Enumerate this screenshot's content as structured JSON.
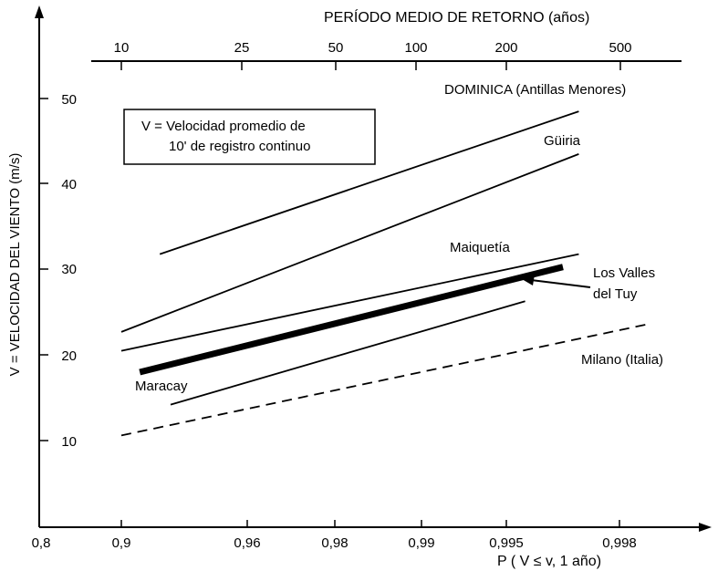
{
  "chart_data": {
    "type": "line",
    "top_axis": {
      "title": "PERÍODO MEDIO DE RETORNO  (años)",
      "ticks": [
        "10",
        "25",
        "50",
        "100",
        "200",
        "500"
      ]
    },
    "x_axis": {
      "label": "P  (  V ≤  v,  1  año)",
      "ticks": [
        "0,8",
        "0,9",
        "0,96",
        "0,98",
        "0,99",
        "0,995",
        "0,998"
      ]
    },
    "y_axis": {
      "label": "V  =  VELOCIDAD DEL VIENTO  (m/s)",
      "ticks": [
        "10",
        "20",
        "30",
        "40",
        "50"
      ],
      "ylim": [
        0,
        55
      ]
    },
    "region_label": "DOMINICA  (Antillas Menores)",
    "legend_box": {
      "line1": "V  =  Velocidad promedio de",
      "line2": "10' de registro continuo"
    },
    "series": [
      {
        "name": "Güiria",
        "x": [
          0.9,
          0.997
        ],
        "y": [
          22.7,
          43.5
        ],
        "style": "solid"
      },
      {
        "name": "",
        "x": [
          0.92,
          0.997
        ],
        "y": [
          31.8,
          48.5
        ],
        "style": "solid"
      },
      {
        "name": "Maiquetía",
        "x": [
          0.9,
          0.997
        ],
        "y": [
          20.5,
          31.8
        ],
        "style": "solid"
      },
      {
        "name": "Maracay / Los Valles del Tuy",
        "x": [
          0.91,
          0.9965
        ],
        "y": [
          18.0,
          30.3
        ],
        "style": "thick"
      },
      {
        "name": "",
        "x": [
          0.925,
          0.995
        ],
        "y": [
          14.2,
          26.3
        ],
        "style": "solid"
      },
      {
        "name": "Milano (Italia)",
        "x": [
          0.9,
          0.9985
        ],
        "y": [
          10.6,
          23.6
        ],
        "style": "dashed"
      }
    ],
    "labels": {
      "guiria": "Güiria",
      "maiquetia": "Maiquetía",
      "los_valles_1": "Los Valles",
      "los_valles_2": "del Tuy",
      "maracay": "Maracay",
      "milano": "Milano (Italia)"
    }
  }
}
